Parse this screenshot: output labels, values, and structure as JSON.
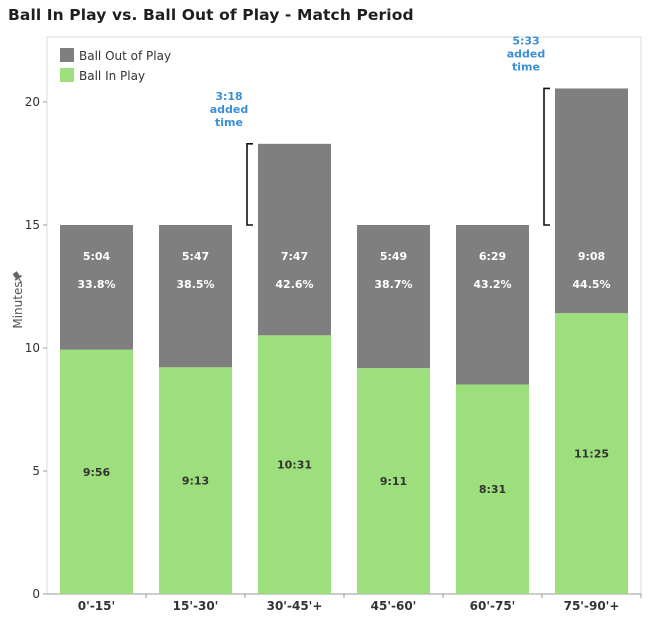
{
  "title": "Ball In Play vs. Ball Out of Play - Match Period",
  "colors": {
    "out_of_play": "#7f7f7f",
    "in_play": "#9edf7d",
    "annotation": "#3a8fd6"
  },
  "pin_icon": "pin-icon",
  "chart_data": {
    "type": "bar",
    "stacked": true,
    "categories": [
      "0'-15'",
      "15'-30'",
      "30'-45'+",
      "45'-60'",
      "60'-75'",
      "75'-90'+"
    ],
    "ylabel": "Minutes",
    "ylim": [
      0,
      21.6
    ],
    "yticks": [
      0,
      5,
      10,
      15,
      20
    ],
    "grid": false,
    "legend": "top-left",
    "series": [
      {
        "name": "Ball In Play",
        "values": [
          9.933,
          9.217,
          10.517,
          9.183,
          8.517,
          11.417
        ],
        "labels": [
          "9:56",
          "9:13",
          "10:31",
          "9:11",
          "8:31",
          "11:25"
        ]
      },
      {
        "name": "Ball Out of Play",
        "values": [
          5.067,
          5.783,
          7.783,
          5.817,
          6.483,
          9.133
        ],
        "labels": [
          "5:04",
          "5:47",
          "7:47",
          "5:49",
          "6:29",
          "9:08"
        ],
        "percent_labels": [
          "33.8%",
          "38.5%",
          "42.6%",
          "38.7%",
          "43.2%",
          "44.5%"
        ]
      }
    ],
    "annotations": [
      {
        "category": "30'-45'+",
        "lines": [
          "3:18",
          "added",
          "time"
        ],
        "from": 15,
        "to": 18.3
      },
      {
        "category": "75'-90'+",
        "lines": [
          "5:33",
          "added",
          "time"
        ],
        "from": 15,
        "to": 20.55
      }
    ]
  }
}
